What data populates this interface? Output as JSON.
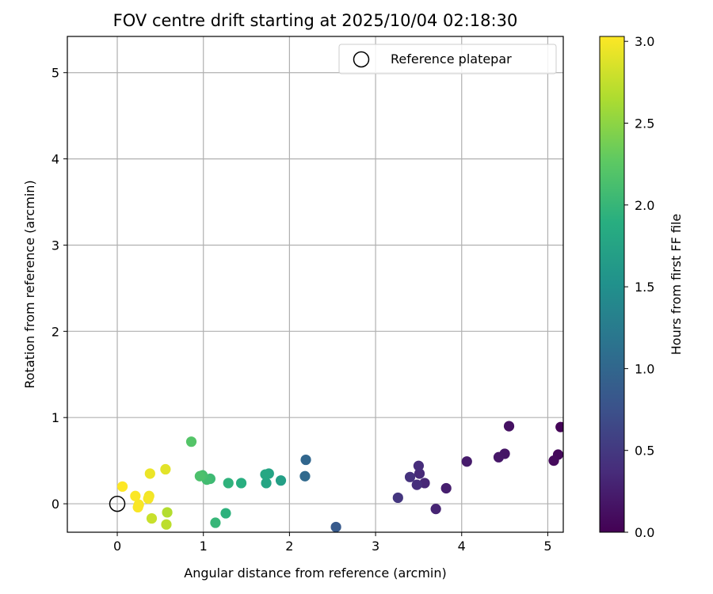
{
  "chart_data": {
    "type": "scatter",
    "title": "FOV centre drift starting at 2025/10/04 02:18:30",
    "xlabel": "Angular distance from reference (arcmin)",
    "ylabel": "Rotation from reference (arcmin)",
    "xlim": [
      -0.58,
      5.18
    ],
    "ylim": [
      -0.33,
      5.42
    ],
    "xticks": [
      0,
      1,
      2,
      3,
      4,
      5
    ],
    "yticks": [
      0,
      1,
      2,
      3,
      4,
      5
    ],
    "grid": true,
    "legend": {
      "location": "upper right",
      "entries": [
        {
          "label": "Reference platepar",
          "marker": "open-circle"
        }
      ]
    },
    "reference_point": {
      "x": 0,
      "y": 0
    },
    "colorbar": {
      "label": "Hours from first FF file",
      "colormap": "viridis",
      "range": [
        0.0,
        3.03
      ],
      "ticks": [
        "0.0",
        "0.5",
        "1.0",
        "1.5",
        "2.0",
        "2.5",
        "3.0"
      ]
    },
    "points": [
      {
        "x": 5.15,
        "y": 0.89,
        "h": 0.03
      },
      {
        "x": 5.12,
        "y": 0.57,
        "h": 0.06
      },
      {
        "x": 5.07,
        "y": 0.5,
        "h": 0.08
      },
      {
        "x": 4.55,
        "y": 0.9,
        "h": 0.14
      },
      {
        "x": 4.5,
        "y": 0.58,
        "h": 0.17
      },
      {
        "x": 4.43,
        "y": 0.54,
        "h": 0.19
      },
      {
        "x": 4.06,
        "y": 0.49,
        "h": 0.22
      },
      {
        "x": 3.82,
        "y": 0.18,
        "h": 0.25
      },
      {
        "x": 3.7,
        "y": -0.06,
        "h": 0.3
      },
      {
        "x": 3.57,
        "y": 0.24,
        "h": 0.33
      },
      {
        "x": 3.51,
        "y": 0.35,
        "h": 0.35
      },
      {
        "x": 3.5,
        "y": 0.44,
        "h": 0.38
      },
      {
        "x": 3.48,
        "y": 0.22,
        "h": 0.4
      },
      {
        "x": 3.4,
        "y": 0.31,
        "h": 0.43
      },
      {
        "x": 3.26,
        "y": 0.07,
        "h": 0.47
      },
      {
        "x": 2.54,
        "y": -0.27,
        "h": 0.85
      },
      {
        "x": 2.19,
        "y": 0.51,
        "h": 1.0
      },
      {
        "x": 2.18,
        "y": 0.32,
        "h": 1.03
      },
      {
        "x": 1.9,
        "y": 0.27,
        "h": 1.7
      },
      {
        "x": 1.76,
        "y": 0.35,
        "h": 1.75
      },
      {
        "x": 1.73,
        "y": 0.24,
        "h": 1.78
      },
      {
        "x": 1.72,
        "y": 0.34,
        "h": 1.8
      },
      {
        "x": 1.44,
        "y": 0.24,
        "h": 1.9
      },
      {
        "x": 1.29,
        "y": 0.24,
        "h": 1.95
      },
      {
        "x": 1.26,
        "y": -0.11,
        "h": 1.93
      },
      {
        "x": 1.14,
        "y": -0.22,
        "h": 2.0
      },
      {
        "x": 1.08,
        "y": 0.29,
        "h": 2.05
      },
      {
        "x": 1.04,
        "y": 0.28,
        "h": 2.08
      },
      {
        "x": 0.99,
        "y": 0.33,
        "h": 2.12
      },
      {
        "x": 0.96,
        "y": 0.32,
        "h": 2.15
      },
      {
        "x": 0.86,
        "y": 0.72,
        "h": 2.2
      },
      {
        "x": 0.58,
        "y": -0.1,
        "h": 2.68
      },
      {
        "x": 0.57,
        "y": -0.24,
        "h": 2.72
      },
      {
        "x": 0.56,
        "y": 0.4,
        "h": 2.9
      },
      {
        "x": 0.4,
        "y": -0.17,
        "h": 2.78
      },
      {
        "x": 0.38,
        "y": 0.35,
        "h": 2.95
      },
      {
        "x": 0.37,
        "y": 0.09,
        "h": 2.97
      },
      {
        "x": 0.36,
        "y": 0.06,
        "h": 2.99
      },
      {
        "x": 0.25,
        "y": -0.01,
        "h": 3.0
      },
      {
        "x": 0.24,
        "y": -0.04,
        "h": 3.01
      },
      {
        "x": 0.21,
        "y": 0.09,
        "h": 3.02
      },
      {
        "x": 0.06,
        "y": 0.2,
        "h": 3.03
      }
    ]
  }
}
